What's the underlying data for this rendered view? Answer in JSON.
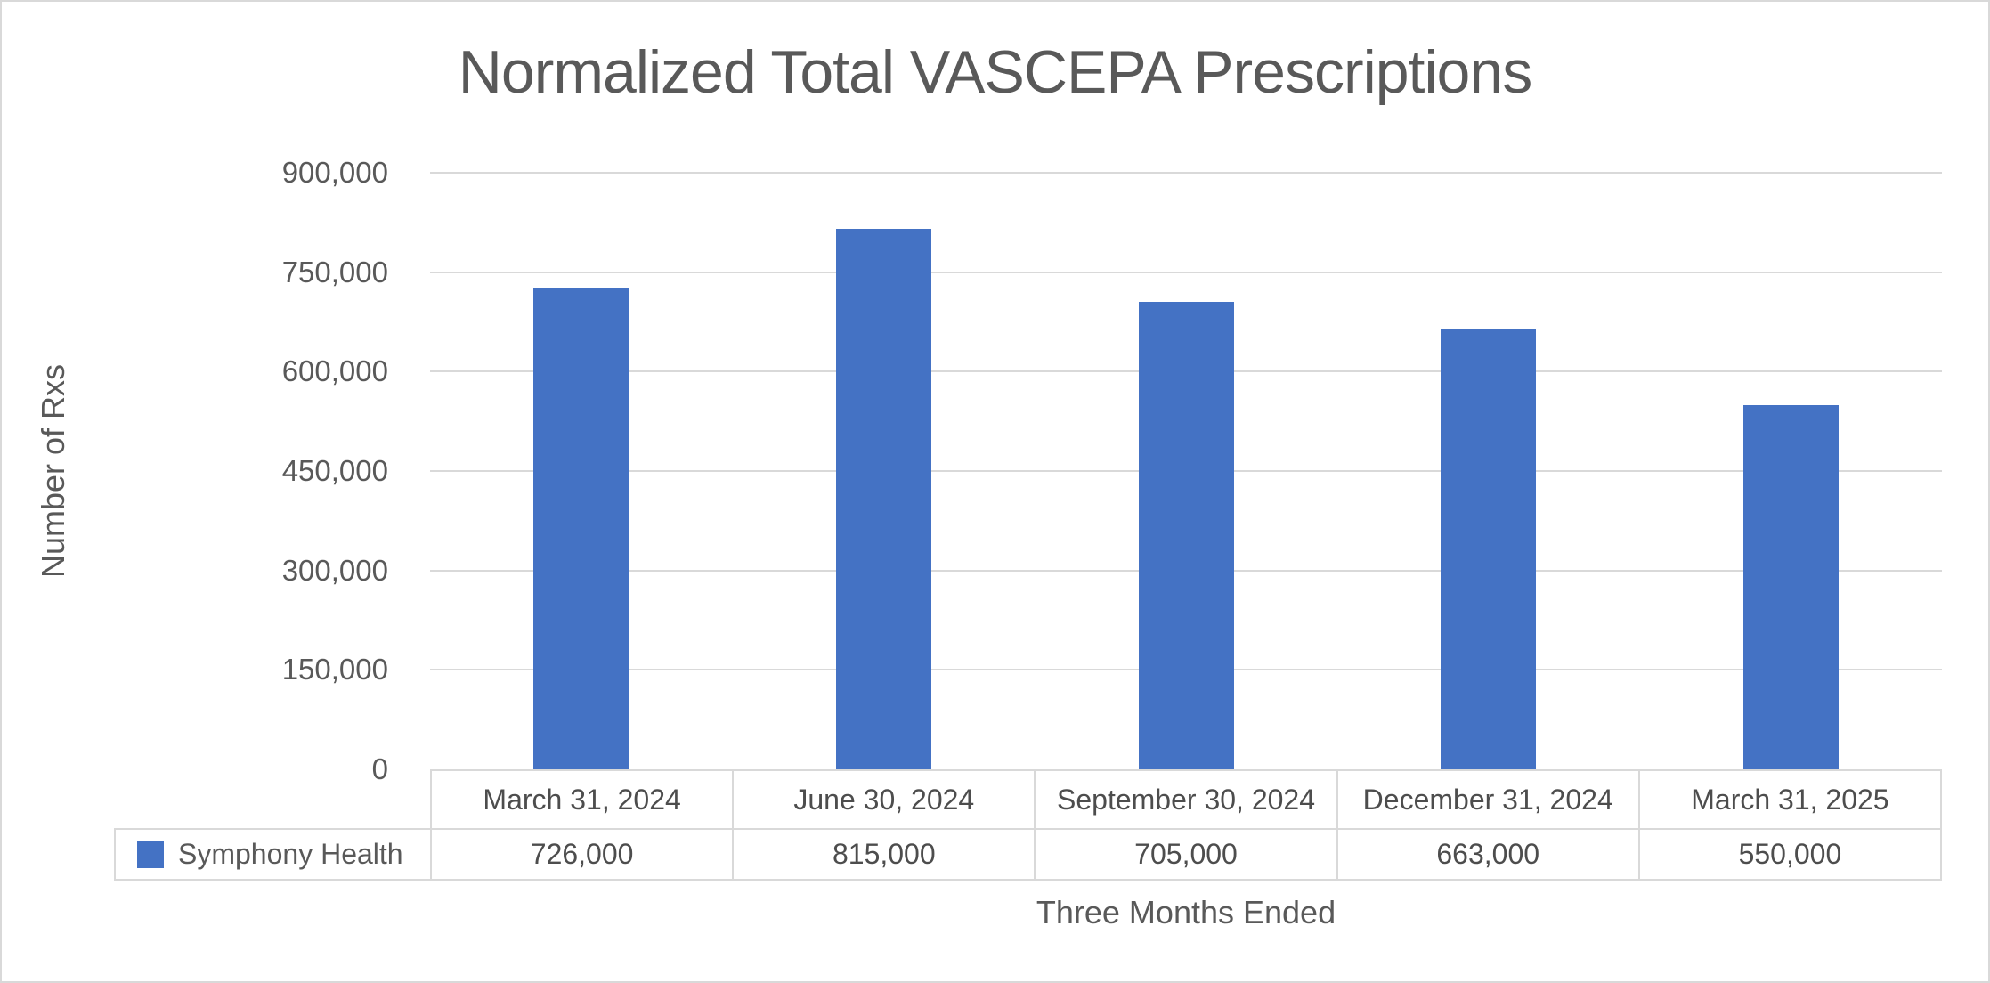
{
  "colors": {
    "bar": "#4472C4",
    "grid": "#d9d9d9",
    "text": "#595959",
    "table_text": "#4d4d4d"
  },
  "chart_data": {
    "type": "bar",
    "title": "Normalized Total VASCEPA Prescriptions",
    "xlabel": "Three Months Ended",
    "ylabel": "Number of Rxs",
    "categories": [
      "March 31, 2024",
      "June 30, 2024",
      "September 30, 2024",
      "December 31, 2024",
      "March 31, 2025"
    ],
    "series": [
      {
        "name": "Symphony Health",
        "values": [
          726000,
          815000,
          705000,
          663000,
          550000
        ],
        "value_labels": [
          "726,000",
          "815,000",
          "705,000",
          "663,000",
          "550,000"
        ]
      }
    ],
    "ylim": [
      0,
      900000
    ],
    "ytick_step": 150000,
    "ytick_labels": [
      "0",
      "150,000",
      "300,000",
      "450,000",
      "600,000",
      "750,000",
      "900,000"
    ],
    "grid": true,
    "legend_position": "bottom-left (data table row header)",
    "bar_color": "#4472C4"
  }
}
